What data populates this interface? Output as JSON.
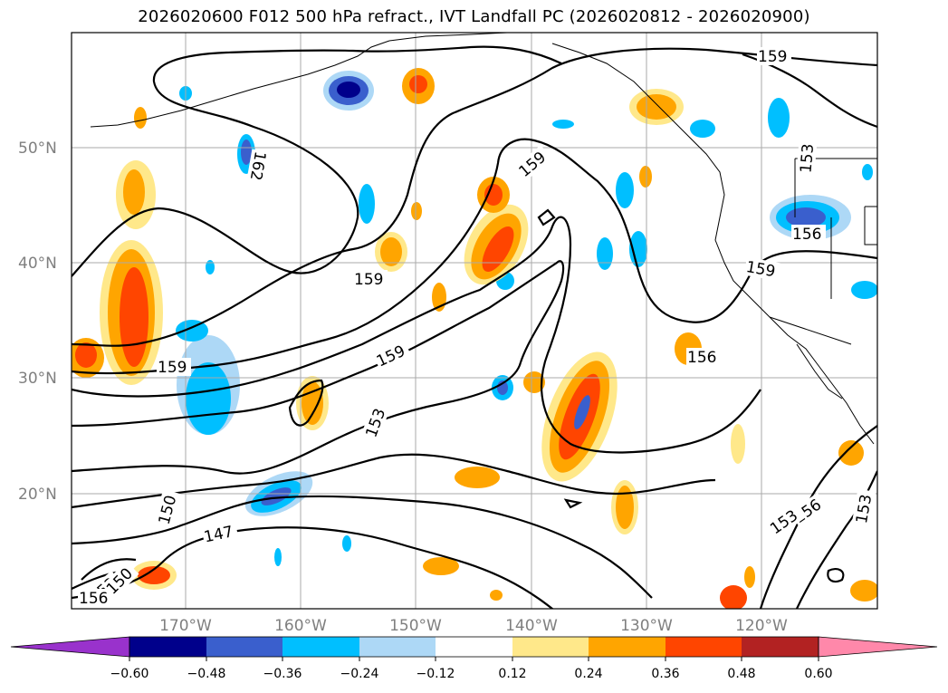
{
  "title": "2026020600 F012 500 hPa refract., IVT Landfall PC (2026020812 - 2026020900)",
  "map": {
    "lat_labels": [
      "50°N",
      "40°N",
      "30°N",
      "20°N"
    ],
    "lon_labels": [
      "170°W",
      "160°W",
      "150°W",
      "140°W",
      "130°W",
      "120°W"
    ],
    "grid": true
  },
  "contours": {
    "color": "#000000",
    "labels": [
      "159",
      "159",
      "159",
      "159",
      "159",
      "159",
      "156",
      "156",
      "156",
      "153",
      "153",
      "153",
      "153",
      "153",
      "150",
      "150",
      "147",
      "156",
      "162"
    ]
  },
  "colorbar": {
    "ticks": [
      "−0.60",
      "−0.48",
      "−0.36",
      "−0.24",
      "−0.12",
      "0.12",
      "0.24",
      "0.36",
      "0.48",
      "0.60"
    ],
    "colors": [
      "#9932CC",
      "#00008B",
      "#3A5FCD",
      "#00BFFF",
      "#ADD8F6",
      "#FFFFFF",
      "#FFE88A",
      "#FFA500",
      "#FF4500",
      "#B22222",
      "#FF88AA"
    ]
  },
  "shading": {
    "negative_core": "#3A5FCD",
    "negative_mid": "#00BFFF",
    "negative_light": "#ADD8F6",
    "positive_light": "#FFE88A",
    "positive_mid": "#FFA500",
    "positive_core": "#FF4500",
    "positive_deep": "#B22222"
  }
}
